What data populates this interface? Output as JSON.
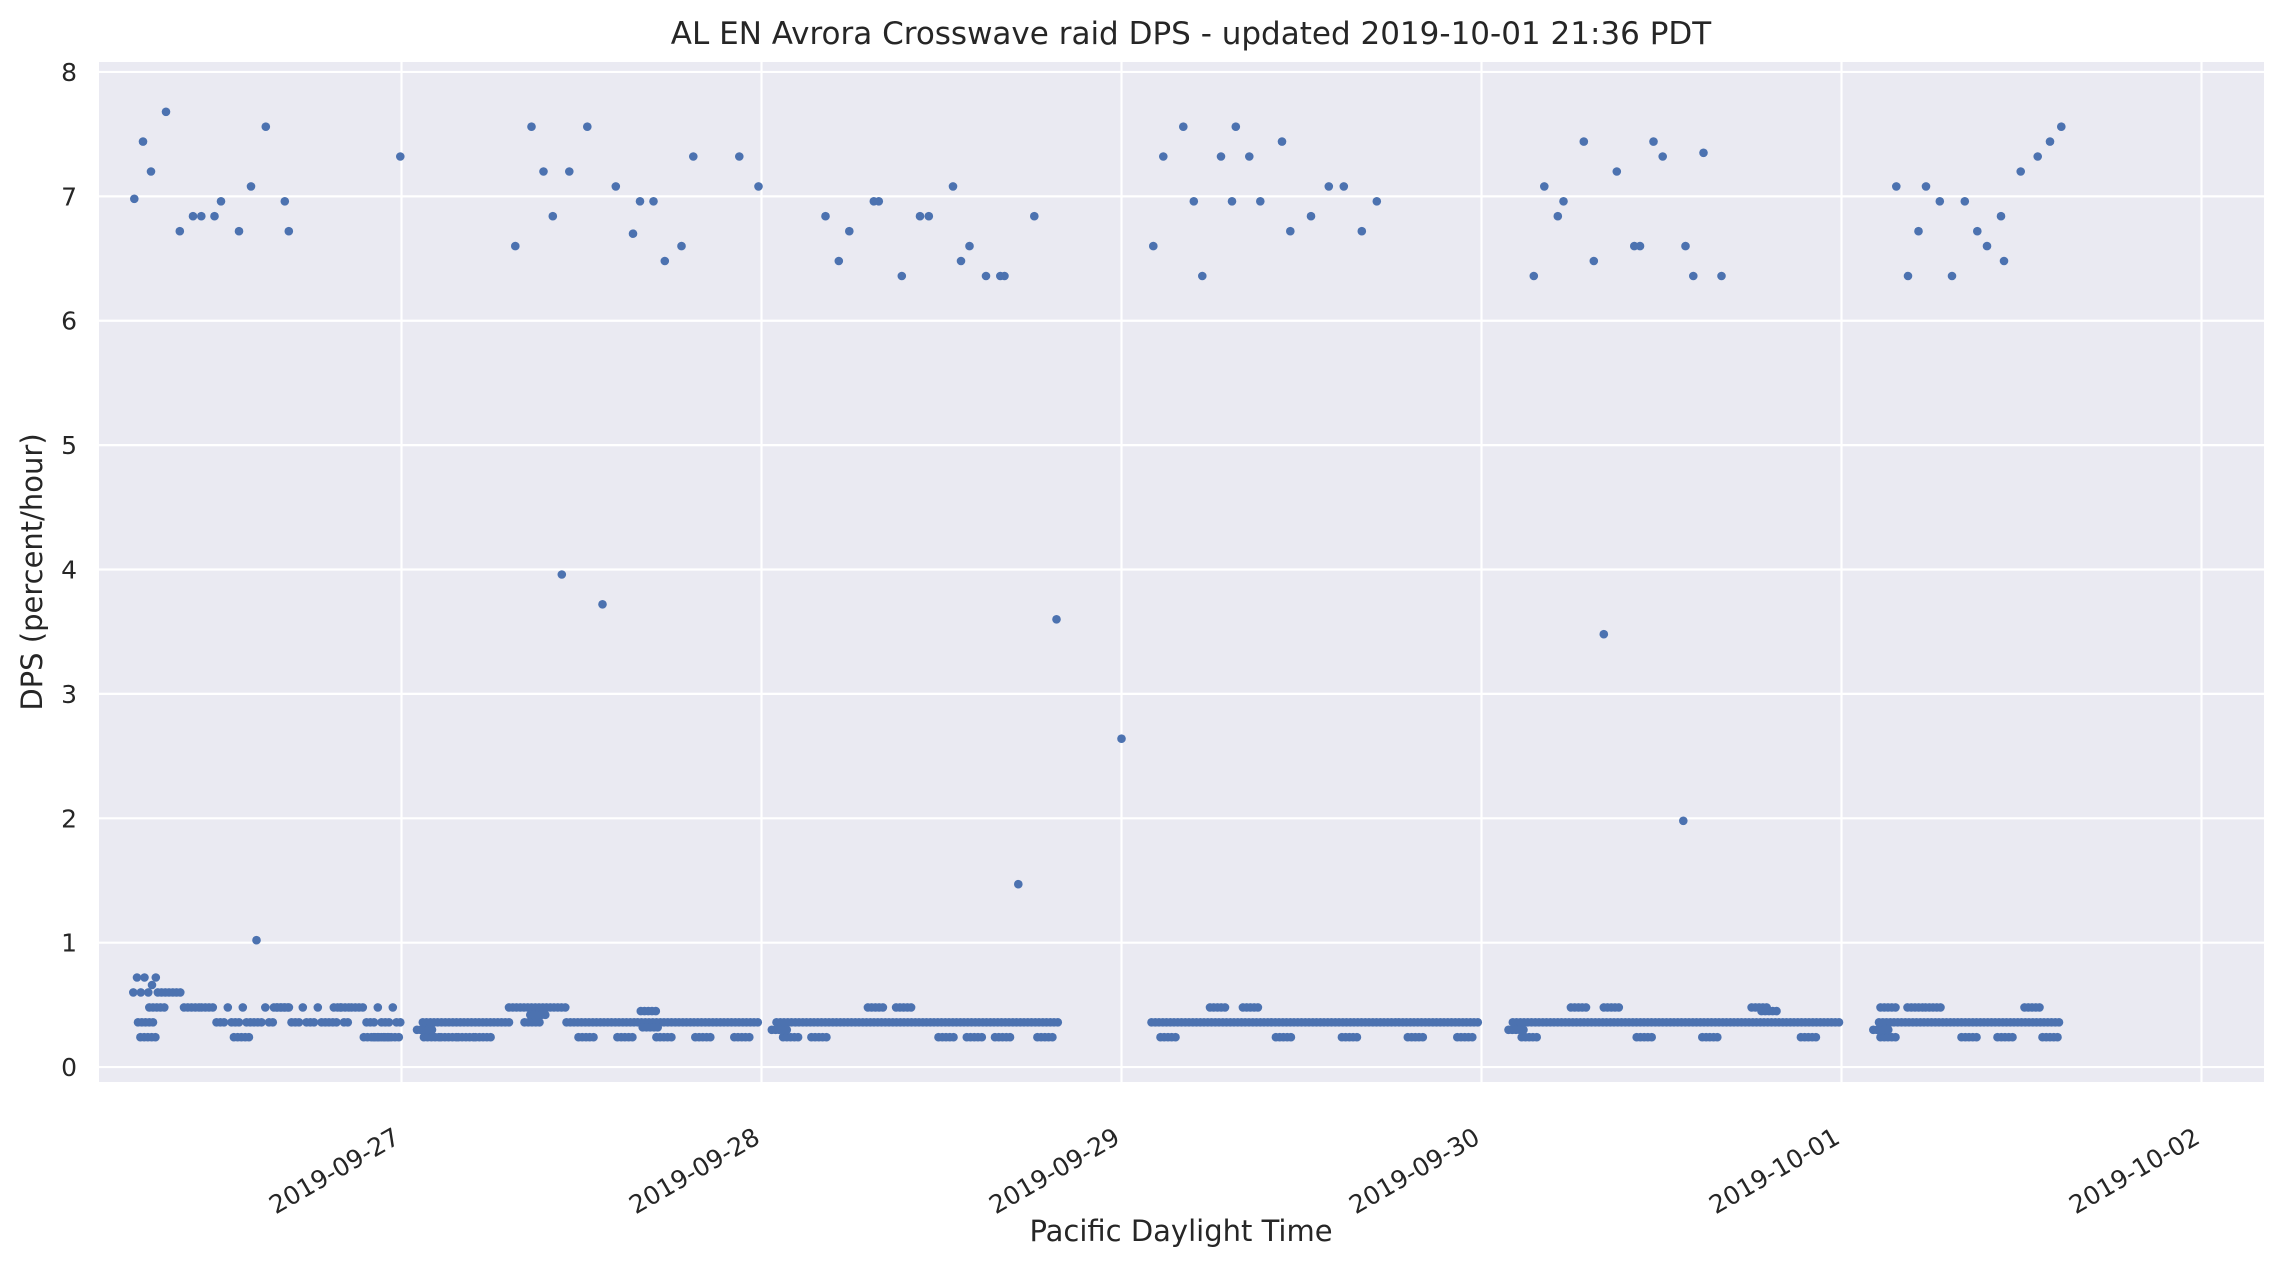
{
  "chart_data": {
    "type": "scatter",
    "title": "AL EN Avrora Crosswave raid DPS - updated 2019-10-01 21:36 PDT",
    "xlabel": "Pacific Daylight Time",
    "ylabel": "DPS (percent/hour)",
    "ylim": [
      -0.12,
      8.08
    ],
    "y_ticks": [
      0,
      1,
      2,
      3,
      4,
      5,
      6,
      7,
      8
    ],
    "x_range": [
      "2019-09-26T03:50",
      "2019-10-02T04:10"
    ],
    "x_ticks": [
      "2019-09-27",
      "2019-09-28",
      "2019-09-29",
      "2019-09-30",
      "2019-10-01",
      "2019-10-02"
    ],
    "grid": true,
    "background": "#eaeaf2",
    "marker_color": "#4c72b0",
    "outliers": [
      [
        "2019-09-26T06:11",
        6.98
      ],
      [
        "2019-09-26T06:46",
        7.44
      ],
      [
        "2019-09-26T07:18",
        7.2
      ],
      [
        "2019-09-26T08:18",
        7.68
      ],
      [
        "2019-09-26T09:13",
        6.72
      ],
      [
        "2019-09-26T10:06",
        6.84
      ],
      [
        "2019-09-26T10:39",
        6.84
      ],
      [
        "2019-09-26T11:32",
        6.84
      ],
      [
        "2019-09-26T11:58",
        6.96
      ],
      [
        "2019-09-26T13:10",
        6.72
      ],
      [
        "2019-09-26T13:58",
        7.08
      ],
      [
        "2019-09-26T14:20",
        1.02
      ],
      [
        "2019-09-26T14:57",
        7.56
      ],
      [
        "2019-09-26T16:13",
        6.96
      ],
      [
        "2019-09-26T16:29",
        6.72
      ],
      [
        "2019-09-26T23:55",
        7.32
      ],
      [
        "2019-09-27T07:35",
        6.6
      ],
      [
        "2019-09-27T08:40",
        7.56
      ],
      [
        "2019-09-27T09:28",
        7.2
      ],
      [
        "2019-09-27T10:05",
        6.84
      ],
      [
        "2019-09-27T10:41",
        3.96
      ],
      [
        "2019-09-27T11:11",
        7.2
      ],
      [
        "2019-09-27T12:23",
        7.56
      ],
      [
        "2019-09-27T13:24",
        3.72
      ],
      [
        "2019-09-27T14:17",
        7.08
      ],
      [
        "2019-09-27T15:26",
        6.7
      ],
      [
        "2019-09-27T15:54",
        6.96
      ],
      [
        "2019-09-27T16:48",
        6.96
      ],
      [
        "2019-09-27T17:33",
        6.48
      ],
      [
        "2019-09-27T18:40",
        6.6
      ],
      [
        "2019-09-27T19:27",
        7.32
      ],
      [
        "2019-09-27T22:31",
        7.32
      ],
      [
        "2019-09-27T23:48",
        7.08
      ],
      [
        "2019-09-28T04:16",
        6.84
      ],
      [
        "2019-09-28T05:09",
        6.48
      ],
      [
        "2019-09-28T05:51",
        6.72
      ],
      [
        "2019-09-28T07:29",
        6.96
      ],
      [
        "2019-09-28T07:49",
        6.96
      ],
      [
        "2019-09-28T09:21",
        6.36
      ],
      [
        "2019-09-28T10:34",
        6.84
      ],
      [
        "2019-09-28T11:09",
        6.84
      ],
      [
        "2019-09-28T12:46",
        7.08
      ],
      [
        "2019-09-28T13:18",
        6.48
      ],
      [
        "2019-09-28T13:52",
        6.6
      ],
      [
        "2019-09-28T14:58",
        6.36
      ],
      [
        "2019-09-28T15:55",
        6.36
      ],
      [
        "2019-09-28T16:12",
        6.36
      ],
      [
        "2019-09-28T17:07",
        1.47
      ],
      [
        "2019-09-28T18:11",
        6.84
      ],
      [
        "2019-09-28T19:40",
        3.6
      ],
      [
        "2019-09-29T00:00",
        2.64
      ],
      [
        "2019-09-29T02:07",
        6.6
      ],
      [
        "2019-09-29T02:47",
        7.32
      ],
      [
        "2019-09-29T04:07",
        7.56
      ],
      [
        "2019-09-29T04:49",
        6.96
      ],
      [
        "2019-09-29T05:23",
        6.36
      ],
      [
        "2019-09-29T06:38",
        7.32
      ],
      [
        "2019-09-29T07:22",
        6.96
      ],
      [
        "2019-09-29T07:37",
        7.56
      ],
      [
        "2019-09-29T08:31",
        7.32
      ],
      [
        "2019-09-29T09:15",
        6.96
      ],
      [
        "2019-09-29T10:42",
        7.44
      ],
      [
        "2019-09-29T11:15",
        6.72
      ],
      [
        "2019-09-29T12:38",
        6.84
      ],
      [
        "2019-09-29T13:49",
        7.08
      ],
      [
        "2019-09-29T14:49",
        7.08
      ],
      [
        "2019-09-29T16:01",
        6.72
      ],
      [
        "2019-09-29T17:01",
        6.96
      ],
      [
        "2019-09-30T03:29",
        6.36
      ],
      [
        "2019-09-30T04:11",
        7.08
      ],
      [
        "2019-09-30T05:05",
        6.84
      ],
      [
        "2019-09-30T05:28",
        6.96
      ],
      [
        "2019-09-30T06:49",
        7.44
      ],
      [
        "2019-09-30T07:29",
        6.48
      ],
      [
        "2019-09-30T08:09",
        3.48
      ],
      [
        "2019-09-30T09:01",
        7.2
      ],
      [
        "2019-09-30T10:11",
        6.6
      ],
      [
        "2019-09-30T10:34",
        6.6
      ],
      [
        "2019-09-30T11:28",
        7.44
      ],
      [
        "2019-09-30T12:05",
        7.32
      ],
      [
        "2019-09-30T13:27",
        1.98
      ],
      [
        "2019-09-30T13:36",
        6.6
      ],
      [
        "2019-09-30T14:07",
        6.36
      ],
      [
        "2019-09-30T14:48",
        7.35
      ],
      [
        "2019-09-30T16:00",
        6.36
      ],
      [
        "2019-10-01T03:39",
        7.08
      ],
      [
        "2019-10-01T04:26",
        6.36
      ],
      [
        "2019-10-01T05:08",
        6.72
      ],
      [
        "2019-10-01T05:38",
        7.08
      ],
      [
        "2019-10-01T06:33",
        6.96
      ],
      [
        "2019-10-01T07:22",
        6.36
      ],
      [
        "2019-10-01T08:13",
        6.96
      ],
      [
        "2019-10-01T09:03",
        6.72
      ],
      [
        "2019-10-01T09:42",
        6.6
      ],
      [
        "2019-10-01T10:38",
        6.84
      ],
      [
        "2019-10-01T10:50",
        6.48
      ],
      [
        "2019-10-01T11:57",
        7.2
      ],
      [
        "2019-10-01T13:05",
        7.32
      ],
      [
        "2019-10-01T13:54",
        7.44
      ],
      [
        "2019-10-01T14:39",
        7.56
      ]
    ],
    "clusters": [
      {
        "start": "2019-09-26T06:07",
        "end": "2019-09-26T07:45",
        "values": [
          0.6,
          0.72,
          0.6,
          0.72,
          0.6,
          0.66,
          0.72,
          0.6,
          0.6,
          0.72
        ],
        "spikes": [
          [
            0.24,
            0.6
          ],
          [
            0.36,
            0.5
          ],
          [
            0.48,
            0.96
          ]
        ]
      },
      {
        "start": "2019-09-26T07:45",
        "end": "2019-09-26T10:40",
        "values": [
          0.6,
          0.6,
          0.6,
          0.6,
          0.6,
          0.6,
          0.6,
          0.48,
          0.48,
          0.48,
          0.48,
          0.48,
          0.48,
          0.48,
          0.48,
          0.48,
          0.48,
          0.48,
          0.48,
          0.48
        ],
        "spikes": []
      },
      {
        "start": "2019-09-26T10:40",
        "end": "2019-09-26T23:59",
        "values": [
          0.48,
          0.48,
          0.48,
          0.48,
          0.36,
          0.36,
          0.36,
          0.48,
          0.36,
          0.36,
          0.36,
          0.48,
          0.36,
          0.36,
          0.36,
          0.36,
          0.36,
          0.48,
          0.36,
          0.36
        ],
        "spikes": [
          [
            0.24,
            0.2
          ],
          [
            0.24,
            0.85
          ],
          [
            0.24,
            0.9
          ],
          [
            0.24,
            0.95
          ],
          [
            0.48,
            0.4
          ],
          [
            0.48,
            0.7
          ]
        ]
      },
      {
        "start": "2019-09-27T01:25",
        "end": "2019-09-27T07:10",
        "values": [
          0.36,
          0.36,
          0.36,
          0.36,
          0.36,
          0.36,
          0.36,
          0.36,
          0.36,
          0.36
        ],
        "spikes": [
          [
            0.24,
            0.1
          ],
          [
            0.24,
            0.3
          ],
          [
            0.24,
            0.5
          ],
          [
            0.24,
            0.7
          ],
          [
            0.3,
            0.02
          ]
        ]
      },
      {
        "start": "2019-09-27T07:10",
        "end": "2019-09-27T11:00",
        "values": [
          0.48,
          0.48,
          0.48,
          0.48,
          0.48,
          0.48,
          0.48,
          0.48,
          0.48,
          0.48
        ],
        "spikes": [
          [
            0.36,
            0.4
          ],
          [
            0.42,
            0.5
          ]
        ]
      },
      {
        "start": "2019-09-27T11:00",
        "end": "2019-09-27T23:59",
        "values": [
          0.36,
          0.36,
          0.36,
          0.36,
          0.36,
          0.36,
          0.36,
          0.36,
          0.36,
          0.36
        ],
        "spikes": [
          [
            0.24,
            0.1
          ],
          [
            0.24,
            0.3
          ],
          [
            0.24,
            0.5
          ],
          [
            0.24,
            0.7
          ],
          [
            0.24,
            0.9
          ],
          [
            0.45,
            0.42
          ],
          [
            0.32,
            0.43
          ]
        ]
      },
      {
        "start": "2019-09-28T01:00",
        "end": "2019-09-28T19:50",
        "values": [
          0.36,
          0.36,
          0.36,
          0.36,
          0.36,
          0.36,
          0.36,
          0.36,
          0.36,
          0.36
        ],
        "spikes": [
          [
            0.24,
            0.05
          ],
          [
            0.24,
            0.15
          ],
          [
            0.24,
            0.6
          ],
          [
            0.24,
            0.7
          ],
          [
            0.24,
            0.8
          ],
          [
            0.24,
            0.95
          ],
          [
            0.3,
            0.01
          ],
          [
            0.48,
            0.35
          ],
          [
            0.48,
            0.45
          ]
        ]
      },
      {
        "start": "2019-09-29T02:00",
        "end": "2019-09-29T23:59",
        "values": [
          0.36,
          0.36,
          0.36,
          0.36,
          0.36,
          0.36,
          0.36,
          0.36,
          0.36,
          0.36
        ],
        "spikes": [
          [
            0.24,
            0.05
          ],
          [
            0.24,
            0.4
          ],
          [
            0.24,
            0.6
          ],
          [
            0.24,
            0.8
          ],
          [
            0.24,
            0.95
          ],
          [
            0.48,
            0.2
          ],
          [
            0.48,
            0.3
          ]
        ]
      },
      {
        "start": "2019-09-30T02:05",
        "end": "2019-09-30T23:59",
        "values": [
          0.36,
          0.36,
          0.36,
          0.36,
          0.36,
          0.36,
          0.36,
          0.36,
          0.36,
          0.36
        ],
        "spikes": [
          [
            0.24,
            0.05
          ],
          [
            0.24,
            0.4
          ],
          [
            0.24,
            0.6
          ],
          [
            0.24,
            0.9
          ],
          [
            0.48,
            0.2
          ],
          [
            0.48,
            0.3
          ],
          [
            0.48,
            0.75
          ],
          [
            0.45,
            0.78
          ],
          [
            0.3,
            0.01
          ]
        ]
      },
      {
        "start": "2019-10-01T02:30",
        "end": "2019-10-01T14:30",
        "values": [
          0.36,
          0.36,
          0.36,
          0.36,
          0.36,
          0.36,
          0.36,
          0.36,
          0.36,
          0.36
        ],
        "spikes": [
          [
            0.24,
            0.05
          ],
          [
            0.24,
            0.5
          ],
          [
            0.24,
            0.7
          ],
          [
            0.24,
            0.95
          ],
          [
            0.48,
            0.05
          ],
          [
            0.48,
            0.2
          ],
          [
            0.48,
            0.3
          ],
          [
            0.48,
            0.85
          ],
          [
            0.3,
            0.01
          ]
        ]
      }
    ]
  }
}
